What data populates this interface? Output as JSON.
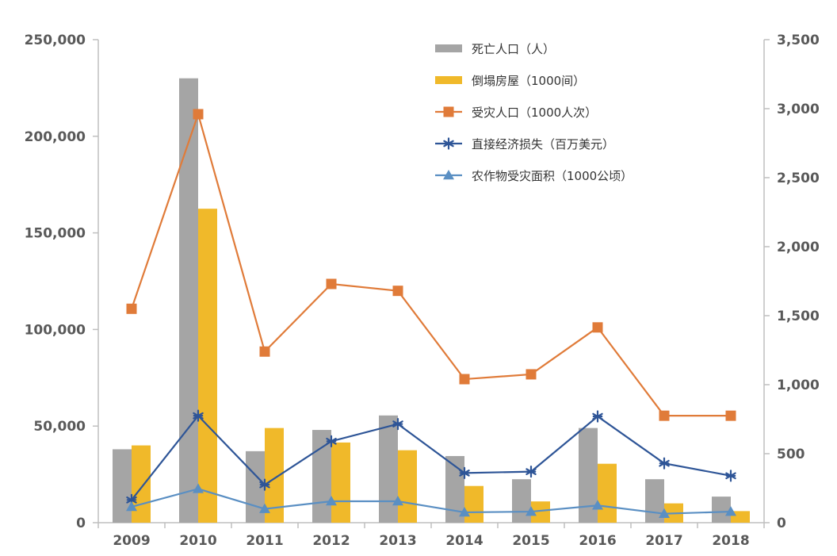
{
  "chart_data": {
    "type": "bar+line",
    "categories": [
      "2009",
      "2010",
      "2011",
      "2012",
      "2013",
      "2014",
      "2015",
      "2016",
      "2017",
      "2018"
    ],
    "left_axis": {
      "ylim": [
        0,
        250000
      ],
      "ticks": [
        0,
        50000,
        100000,
        150000,
        200000,
        250000
      ],
      "tick_labels": [
        "0",
        "50,000",
        "100,000",
        "150,000",
        "200,000",
        "250,000"
      ]
    },
    "right_axis": {
      "ylim": [
        0,
        3500
      ],
      "ticks": [
        0,
        500,
        1000,
        1500,
        2000,
        2500,
        3000,
        3500
      ],
      "tick_labels": [
        "0",
        "500",
        "1,000",
        "1,500",
        "2,000",
        "2,500",
        "3,000",
        "3,500"
      ]
    },
    "series": [
      {
        "name": "死亡人口（人）",
        "kind": "bar",
        "axis": "left",
        "color": "#A5A5A5",
        "values": [
          38000,
          230000,
          37000,
          48000,
          55500,
          34500,
          22500,
          49000,
          22500,
          13500
        ]
      },
      {
        "name": "倒塌房屋（1000间）",
        "kind": "bar",
        "axis": "left",
        "color": "#F0B92A",
        "values": [
          40000,
          162500,
          49000,
          41500,
          37500,
          19000,
          11000,
          30500,
          10000,
          6000
        ]
      },
      {
        "name": "受灾人口（1000人次）",
        "kind": "line",
        "marker": "square",
        "axis": "right",
        "color": "#E07B39",
        "values": [
          1550,
          2960,
          1240,
          1730,
          1680,
          1040,
          1075,
          1415,
          775,
          775
        ]
      },
      {
        "name": "直接经济损失（百万美元）",
        "kind": "line",
        "marker": "star",
        "axis": "right",
        "color": "#2E5597",
        "values": [
          165,
          775,
          275,
          590,
          715,
          360,
          370,
          770,
          430,
          340
        ]
      },
      {
        "name": "农作物受灾面积（1000公顷）",
        "kind": "line",
        "marker": "triangle",
        "axis": "right",
        "color": "#5A8FC3",
        "values": [
          115,
          245,
          100,
          155,
          155,
          75,
          80,
          125,
          65,
          80
        ]
      }
    ],
    "legend_position": "top-right",
    "grid": false
  }
}
